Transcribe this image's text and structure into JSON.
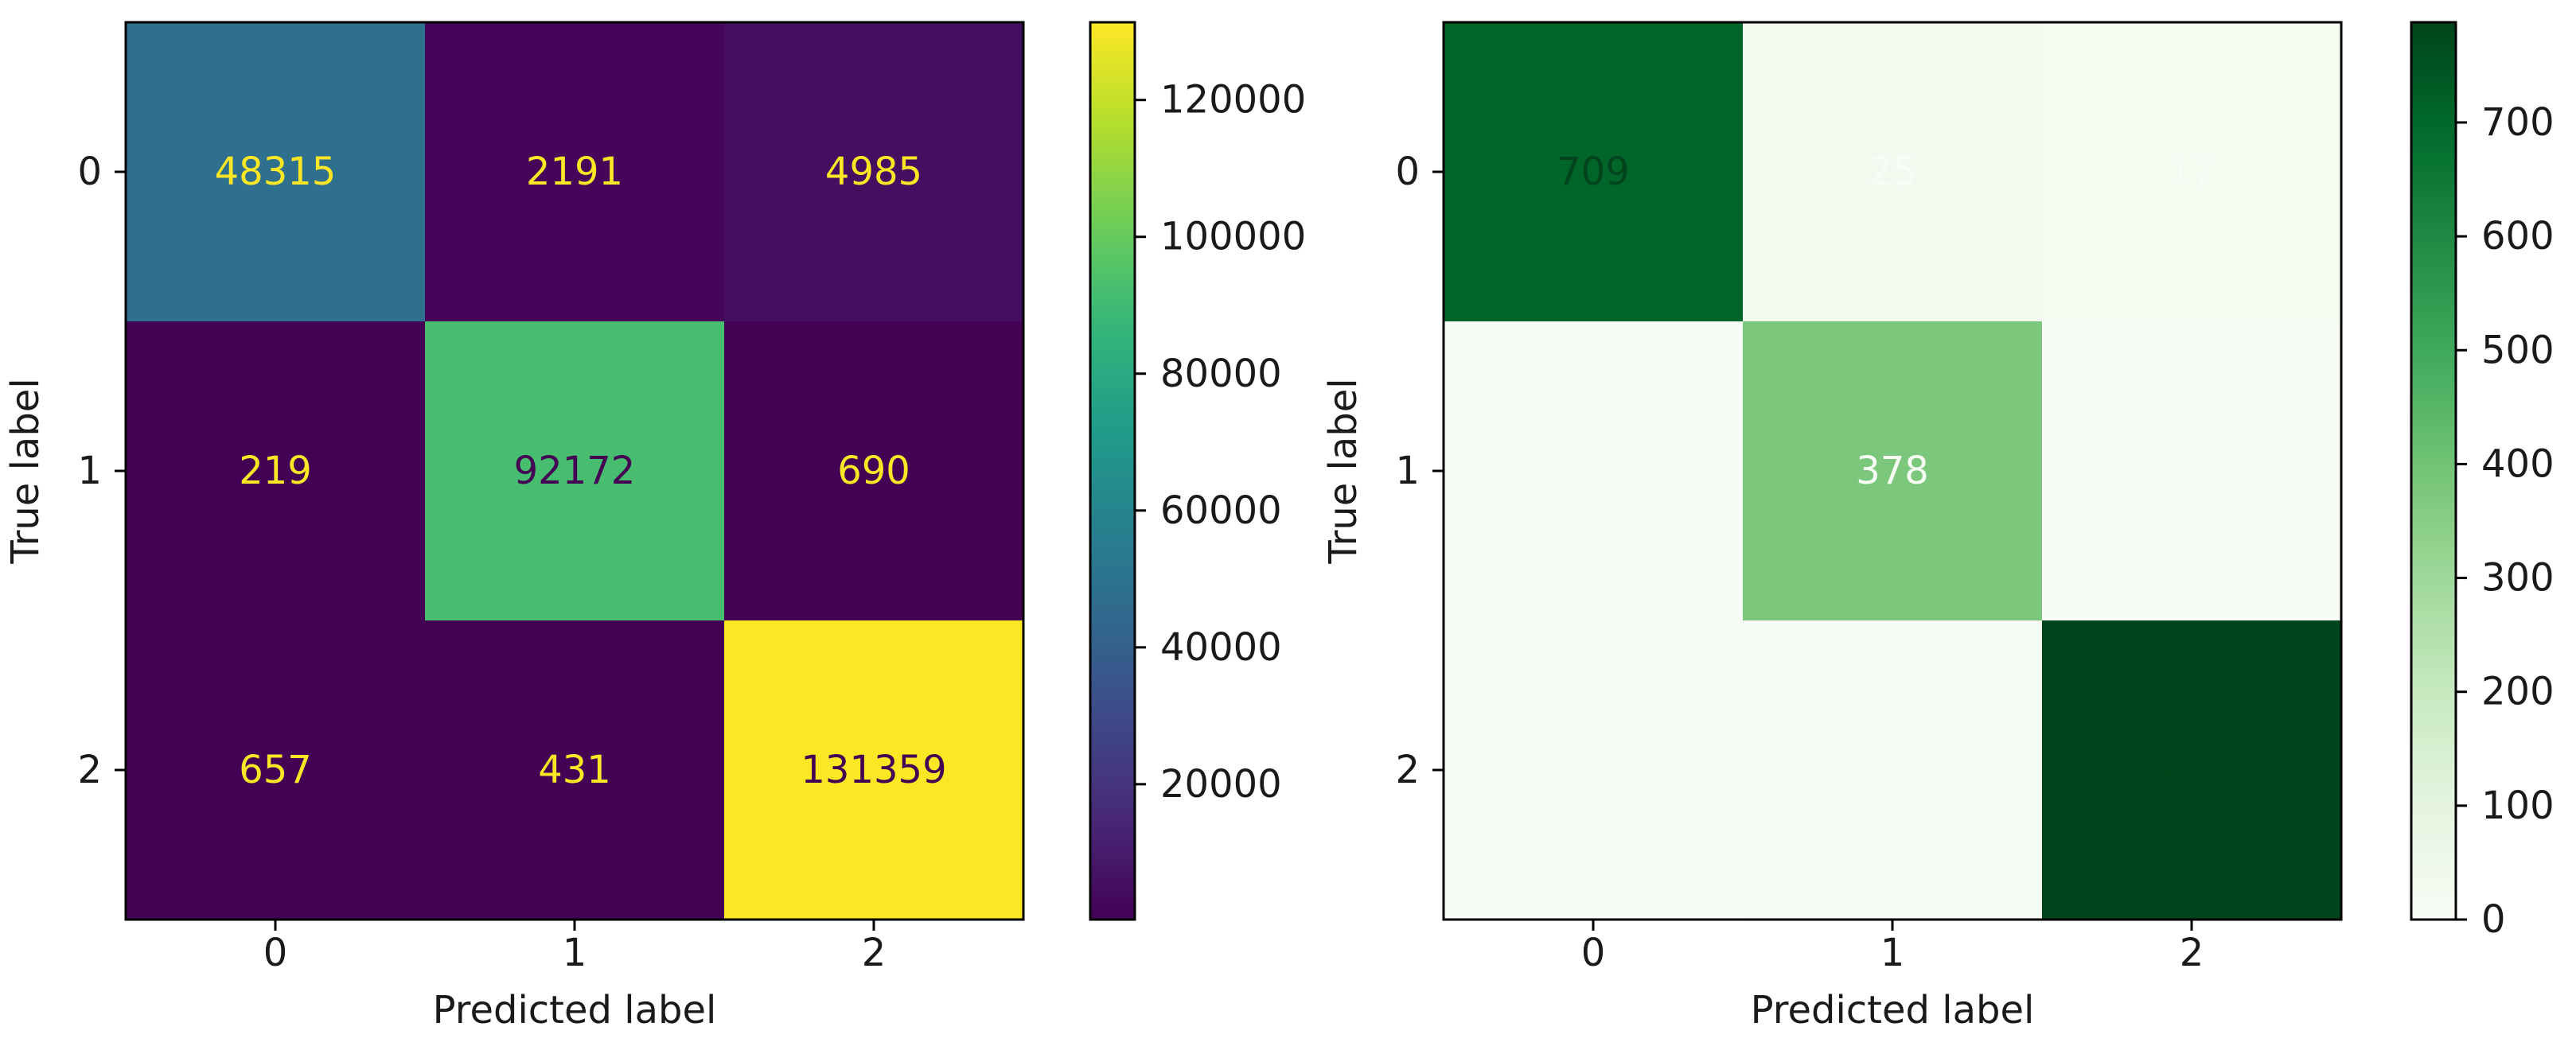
{
  "chart_data": [
    {
      "type": "heatmap",
      "colormap": "viridis",
      "xlabel": "Predicted label",
      "ylabel": "True label",
      "x_categories": [
        "0",
        "1",
        "2"
      ],
      "y_categories": [
        "0",
        "1",
        "2"
      ],
      "matrix": [
        [
          48315,
          2191,
          4985
        ],
        [
          219,
          92172,
          690
        ],
        [
          657,
          431,
          131359
        ]
      ],
      "colorbar": {
        "min": 219,
        "max": 131359,
        "ticks": [
          20000,
          40000,
          60000,
          80000,
          100000,
          120000
        ]
      },
      "text_colors": {
        "on_dark": "#fde725",
        "on_light": "#440154"
      }
    },
    {
      "type": "heatmap",
      "colormap": "greens",
      "xlabel": "Predicted label",
      "ylabel": "True label",
      "x_categories": [
        "0",
        "1",
        "2"
      ],
      "y_categories": [
        "0",
        "1",
        "2"
      ],
      "matrix": [
        [
          709,
          25,
          17
        ],
        [
          0,
          378,
          0
        ],
        [
          0,
          5,
          788
        ]
      ],
      "colorbar": {
        "min": 0,
        "max": 788,
        "ticks": [
          0,
          100,
          200,
          300,
          400,
          500,
          600,
          700
        ]
      },
      "text_colors": {
        "on_dark": "#f7fcf5",
        "on_light": "#00441b"
      }
    }
  ]
}
